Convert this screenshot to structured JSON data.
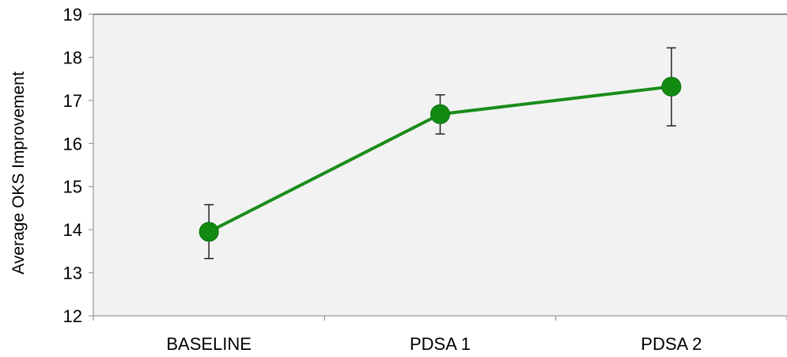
{
  "chart_data": {
    "type": "line",
    "categories": [
      "BASELINE",
      "PDSA 1",
      "PDSA 2"
    ],
    "series": [
      {
        "values": [
          13.95,
          16.68,
          17.32
        ],
        "error_low": [
          13.33,
          16.22,
          16.41
        ],
        "error_high": [
          14.58,
          17.13,
          18.22
        ]
      }
    ],
    "title": "",
    "xlabel": "",
    "ylabel": "Average OKS Improvement",
    "ylim": [
      12,
      19
    ],
    "yticks": [
      12,
      13,
      14,
      15,
      16,
      17,
      18,
      19
    ],
    "grid": false,
    "legend": "none",
    "colors": {
      "line": "#1a8c1a",
      "marker": "#128a12",
      "error_bar": "#222222",
      "plot_background": "#f2f2f2",
      "axis": "#9a9a9a"
    }
  }
}
